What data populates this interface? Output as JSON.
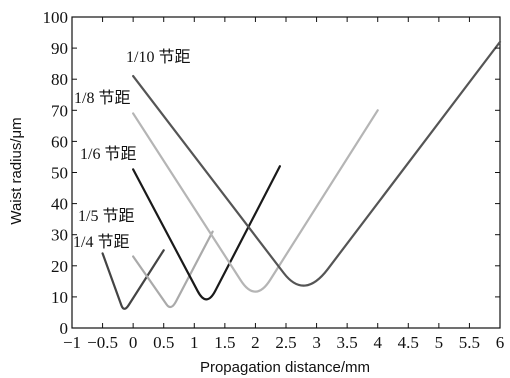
{
  "chart_data": {
    "type": "line",
    "xlabel": "Propagation distance/mm",
    "ylabel": "Waist radius/μm",
    "xlim": [
      -1,
      6
    ],
    "ylim": [
      0,
      100
    ],
    "x_ticks": [
      -1,
      -0.5,
      0,
      0.5,
      1,
      1.5,
      2,
      2.5,
      3,
      3.5,
      4,
      4.5,
      5,
      5.5,
      6
    ],
    "x_tick_labels": [
      "−1",
      "−0.5",
      "0",
      "0.5",
      "1",
      "1.5",
      "2",
      "2.5",
      "3",
      "3.5",
      "4",
      "4.5",
      "5",
      "5.5",
      "6"
    ],
    "y_ticks": [
      0,
      10,
      20,
      30,
      40,
      50,
      60,
      70,
      80,
      90,
      100
    ],
    "y_tick_labels": [
      "0",
      "10",
      "20",
      "30",
      "40",
      "50",
      "60",
      "70",
      "80",
      "90",
      "100"
    ],
    "series": [
      {
        "name": "1/4 节距",
        "color": "#444444",
        "x": [
          -0.5,
          -0.15,
          0.5
        ],
        "y": [
          24,
          5,
          25
        ]
      },
      {
        "name": "1/5 节距",
        "color": "#aaaaaa",
        "x": [
          0.0,
          0.62,
          1.3
        ],
        "y": [
          23,
          5.5,
          31
        ]
      },
      {
        "name": "1/6 节距",
        "color": "#1a1a1a",
        "x": [
          0.0,
          1.2,
          2.4
        ],
        "y": [
          51,
          6.5,
          52
        ]
      },
      {
        "name": "1/8 节距",
        "color": "#b5b5b5",
        "x": [
          0.0,
          2.0,
          4.0
        ],
        "y": [
          69,
          8,
          70
        ]
      },
      {
        "name": "1/10 节距",
        "color": "#555555",
        "x": [
          0.0,
          2.8,
          6.0
        ],
        "y": [
          81,
          9,
          92
        ]
      }
    ]
  }
}
